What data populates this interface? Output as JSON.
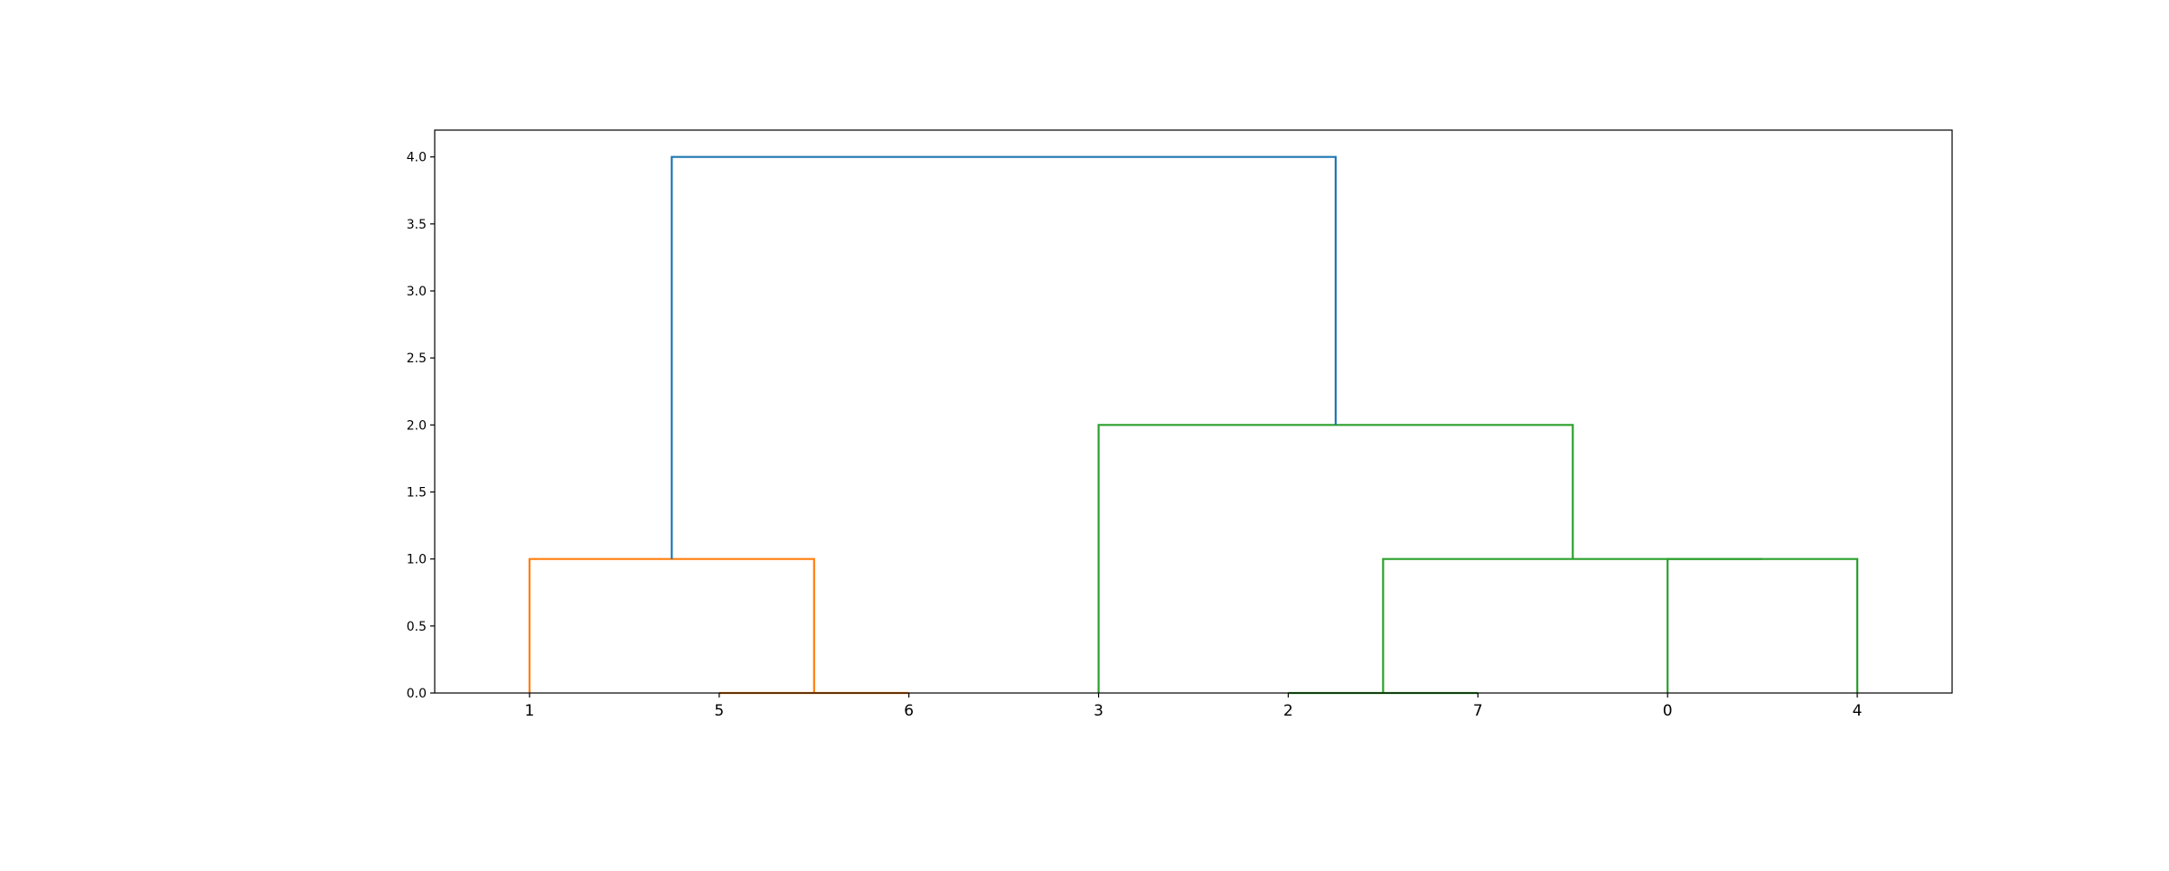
{
  "chart_data": {
    "type": "dendrogram",
    "title": "",
    "xlabel": "",
    "ylabel": "",
    "leaf_labels": [
      "1",
      "5",
      "6",
      "3",
      "2",
      "7",
      "0",
      "4"
    ],
    "xlim": [
      0,
      80
    ],
    "ylim": [
      0,
      4.2
    ],
    "yticks": [
      "0.0",
      "0.5",
      "1.0",
      "1.5",
      "2.0",
      "2.5",
      "3.0",
      "3.5",
      "4.0"
    ],
    "grid": false,
    "links": [
      {
        "icoord": [
          15,
          15,
          25,
          25
        ],
        "dcoord": [
          0,
          0,
          0,
          0
        ],
        "color": "#ff7f0e"
      },
      {
        "icoord": [
          5,
          5,
          20,
          20
        ],
        "dcoord": [
          0,
          1,
          1,
          0
        ],
        "color": "#ff7f0e"
      },
      {
        "icoord": [
          45,
          45,
          55,
          55
        ],
        "dcoord": [
          0,
          0,
          0,
          0
        ],
        "color": "#2ca02c"
      },
      {
        "icoord": [
          65,
          65,
          75,
          75
        ],
        "dcoord": [
          0,
          1,
          1,
          0
        ],
        "color": "#2ca02c"
      },
      {
        "icoord": [
          50,
          50,
          70,
          70
        ],
        "dcoord": [
          0,
          1,
          1,
          1
        ],
        "color": "#2ca02c"
      },
      {
        "icoord": [
          35,
          35,
          60,
          60
        ],
        "dcoord": [
          0,
          2,
          2,
          1
        ],
        "color": "#2ca02c"
      },
      {
        "icoord": [
          12.5,
          12.5,
          47.5,
          47.5
        ],
        "dcoord": [
          1,
          4,
          4,
          2
        ],
        "color": "#1f77b4"
      }
    ]
  }
}
